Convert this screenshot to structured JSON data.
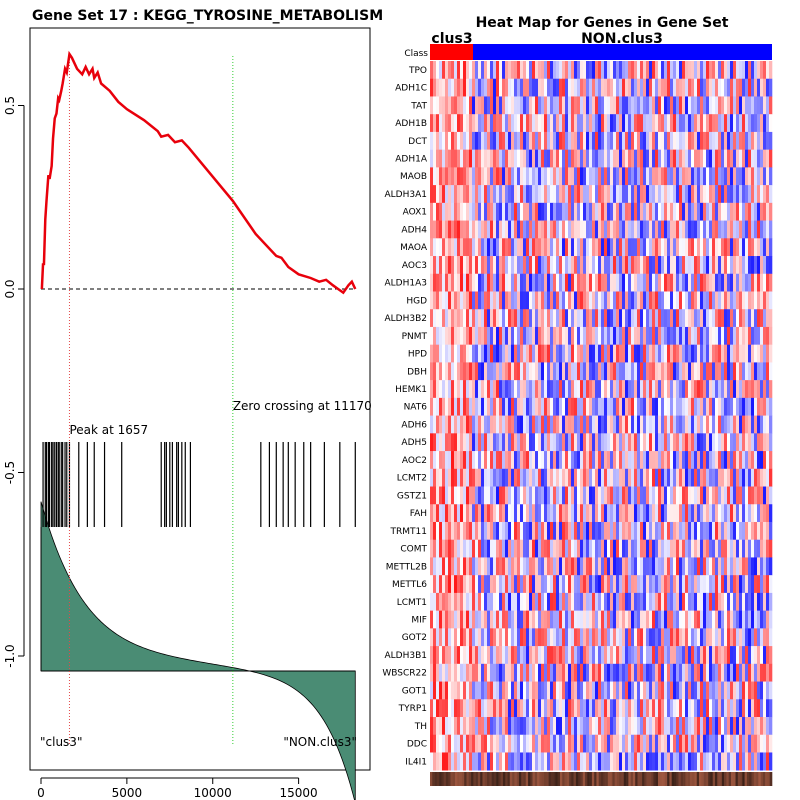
{
  "chart_data": [
    {
      "type": "line",
      "title": "Gene Set  17 : KEGG_TYROSINE_METABOLISM",
      "xlim": [
        0,
        18400
      ],
      "ylim": [
        -1.25,
        0.7
      ],
      "x_ticks": [
        0,
        5000,
        10000,
        15000
      ],
      "x_tick_labels": [
        "0",
        "5000",
        "10000",
        "15000"
      ],
      "y_ticks": [
        0.5,
        0.0,
        -0.5,
        -1.0
      ],
      "y_tick_labels": [
        "0.5",
        "0.0",
        "-0.5",
        "-1.0"
      ],
      "running_enrichment_score": {
        "x": [
          50,
          120,
          170,
          250,
          320,
          430,
          500,
          620,
          700,
          800,
          900,
          1000,
          1060,
          1180,
          1260,
          1400,
          1500,
          1657,
          1800,
          2100,
          2400,
          2600,
          2800,
          3000,
          3100,
          3300,
          3500,
          4000,
          4500,
          5000,
          6000,
          6800,
          7000,
          7400,
          7800,
          8200,
          8600,
          11170,
          12500,
          13700,
          14000,
          14400,
          15000,
          15700,
          16200,
          16600,
          17000,
          17300,
          17600,
          17900,
          18100,
          18300
        ],
        "y": [
          0.0,
          0.07,
          0.065,
          0.19,
          0.24,
          0.31,
          0.3,
          0.335,
          0.41,
          0.465,
          0.478,
          0.52,
          0.515,
          0.54,
          0.56,
          0.6,
          0.59,
          0.64,
          0.63,
          0.6,
          0.585,
          0.605,
          0.585,
          0.6,
          0.575,
          0.59,
          0.56,
          0.54,
          0.51,
          0.49,
          0.46,
          0.43,
          0.415,
          0.42,
          0.4,
          0.405,
          0.385,
          0.24,
          0.15,
          0.09,
          0.085,
          0.06,
          0.04,
          0.03,
          0.02,
          0.025,
          0.01,
          0.0,
          -0.01,
          0.01,
          0.02,
          0.0
        ]
      },
      "hit_positions": [
        120,
        250,
        320,
        430,
        500,
        620,
        700,
        800,
        900,
        1000,
        1060,
        1180,
        1260,
        1400,
        1500,
        1657,
        2200,
        2700,
        3100,
        3700,
        4700,
        7000,
        7200,
        7300,
        7500,
        7650,
        7900,
        8000,
        8200,
        8400,
        8700,
        12800,
        13300,
        13700,
        14100,
        14400,
        14800,
        15300,
        15700,
        16500,
        17400,
        18300
      ],
      "peak_label": "Peak at 1657",
      "peak_position": 1657,
      "zero_crossing_label": "Zero crossing at 11170",
      "zero_crossing_position": 11170,
      "left_group_label": "\"clus3\"",
      "right_group_label": "\"NON.clus3\"",
      "line_color": "#e8000b",
      "peak_line_color": "#e34a4a",
      "zero_line_color": "#33cc33",
      "ranked_metric_fill": "#4a8c74"
    },
    {
      "type": "heatmap",
      "title": "Heat Map for Genes in Gene Set",
      "class_label": "Class",
      "groups": [
        "clus3",
        "NON.clus3"
      ],
      "group_colors": [
        "#ff0000",
        "#0000ff"
      ],
      "genes": [
        "TPO",
        "ADH1C",
        "TAT",
        "ADH1B",
        "DCT",
        "ADH1A",
        "MAOB",
        "ALDH3A1",
        "AOX1",
        "ADH4",
        "MAOA",
        "AOC3",
        "ALDH1A3",
        "HGD",
        "ALDH3B2",
        "PNMT",
        "HPD",
        "DBH",
        "HEMK1",
        "NAT6",
        "ADH6",
        "ADH5",
        "AOC2",
        "LCMT2",
        "GSTZ1",
        "FAH",
        "TRMT11",
        "COMT",
        "METTL2B",
        "METTL6",
        "LCMT1",
        "MIF",
        "GOT2",
        "ALDH3B1",
        "WBSCR22",
        "GOT1",
        "TYRP1",
        "TH",
        "DDC",
        "IL4I1"
      ]
    }
  ]
}
